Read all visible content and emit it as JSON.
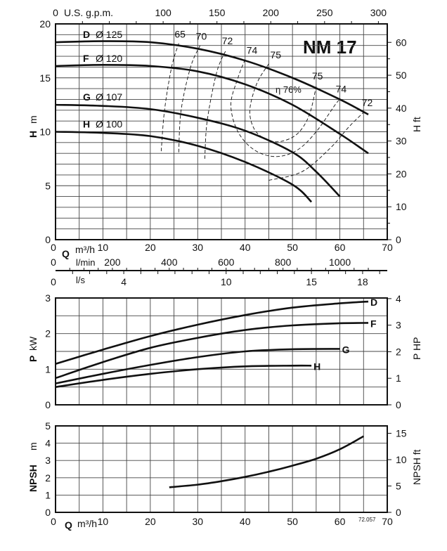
{
  "chart_data": [
    {
      "type": "line",
      "title": "NM 17",
      "xlabel": "Q m³/h",
      "ylabel": "H m",
      "y2label": "H ft",
      "x2label_top": "U.S. g.p.m.",
      "xlim": [
        0,
        70
      ],
      "ylim": [
        0,
        20
      ],
      "y2lim_ft": [
        0,
        65.6
      ],
      "grid": true,
      "x_ticks": [
        0,
        10,
        20,
        30,
        40,
        50,
        60,
        70
      ],
      "y_ticks": [
        0,
        5,
        10,
        15,
        20
      ],
      "y2_ticks": [
        0,
        10,
        20,
        30,
        40,
        50,
        60
      ],
      "top_ticks_gpm": [
        0,
        100,
        150,
        200,
        250,
        300
      ],
      "lmin_label": "l/min",
      "lmin_ticks": [
        0,
        200,
        400,
        600,
        800,
        1000
      ],
      "ls_label": "l/s",
      "ls_ticks": [
        0,
        4,
        10,
        15,
        18
      ],
      "series": [
        {
          "name": "D",
          "label": "Ø 125",
          "x": [
            0,
            10,
            20,
            30,
            40,
            50,
            60,
            66
          ],
          "y": [
            18.3,
            18.4,
            18.3,
            17.7,
            16.6,
            15.0,
            13.0,
            11.6
          ]
        },
        {
          "name": "F",
          "label": "Ø 120",
          "x": [
            0,
            10,
            20,
            30,
            40,
            50,
            60,
            66
          ],
          "y": [
            16.1,
            16.2,
            16.1,
            15.6,
            14.4,
            12.5,
            9.8,
            8.0
          ]
        },
        {
          "name": "G",
          "label": "Ø 107",
          "x": [
            0,
            10,
            20,
            30,
            40,
            50,
            55,
            60
          ],
          "y": [
            12.5,
            12.4,
            12.1,
            11.3,
            10.1,
            8.1,
            6.3,
            4.0
          ]
        },
        {
          "name": "H",
          "label": "Ø 100",
          "x": [
            0,
            10,
            20,
            30,
            40,
            50,
            54
          ],
          "y": [
            10.0,
            9.9,
            9.6,
            8.7,
            7.2,
            5.1,
            3.5
          ]
        }
      ],
      "efficiency_curves": [
        {
          "label": "65",
          "points": [
            [
              22.3,
              8.2
            ],
            [
              23,
              12
            ],
            [
              24.5,
              16
            ],
            [
              26,
              18.2
            ]
          ]
        },
        {
          "label": "70",
          "points": [
            [
              26,
              8.1
            ],
            [
              26.5,
              12
            ],
            [
              28.5,
              16
            ],
            [
              30.5,
              18
            ]
          ]
        },
        {
          "label": "72",
          "points": [
            [
              31.5,
              7.5
            ],
            [
              32,
              11
            ],
            [
              34,
              15.5
            ],
            [
              36,
              17.6
            ]
          ],
          "label_right": "72",
          "points_right": [
            [
              45,
              5.5
            ],
            [
              52,
              6.3
            ],
            [
              58,
              8.5
            ],
            [
              62,
              10.5
            ],
            [
              65.5,
              12
            ]
          ]
        },
        {
          "label": "74",
          "points": [
            [
              40,
              16.7
            ],
            [
              38.5,
              15
            ],
            [
              37,
              12.5
            ],
            [
              38.5,
              10
            ],
            [
              42,
              8.3
            ],
            [
              46.5,
              7.7
            ],
            [
              51,
              8.3
            ],
            [
              55,
              10
            ],
            [
              59,
              12.5
            ],
            [
              60,
              13
            ]
          ]
        },
        {
          "label": "75",
          "points": [
            [
              45,
              16.3
            ],
            [
              42.5,
              14.5
            ],
            [
              41,
              12
            ],
            [
              42,
              10.2
            ],
            [
              44.5,
              9.3
            ],
            [
              47.5,
              9.1
            ],
            [
              51,
              9.8
            ],
            [
              53.5,
              11.5
            ],
            [
              55,
              14.2
            ]
          ]
        }
      ],
      "best_efficiency_label": "η 76%"
    },
    {
      "type": "line",
      "xlabel": "",
      "ylabel": "P kW",
      "y2label": "P HP",
      "xlim": [
        0,
        70
      ],
      "ylim": [
        0,
        3
      ],
      "y_ticks": [
        0,
        1,
        2,
        3
      ],
      "y2_ticks": [
        0,
        1,
        2,
        3,
        4
      ],
      "grid": true,
      "series": [
        {
          "name": "D",
          "x": [
            0,
            10,
            20,
            30,
            40,
            50,
            60,
            66
          ],
          "y": [
            1.15,
            1.55,
            1.93,
            2.25,
            2.52,
            2.73,
            2.85,
            2.9
          ]
        },
        {
          "name": "F",
          "x": [
            0,
            10,
            20,
            30,
            40,
            50,
            60,
            66
          ],
          "y": [
            0.75,
            1.2,
            1.6,
            1.88,
            2.1,
            2.23,
            2.29,
            2.3
          ]
        },
        {
          "name": "G",
          "x": [
            0,
            10,
            20,
            30,
            40,
            50,
            60
          ],
          "y": [
            0.6,
            0.87,
            1.12,
            1.34,
            1.5,
            1.56,
            1.57
          ]
        },
        {
          "name": "H",
          "x": [
            0,
            10,
            20,
            30,
            40,
            50,
            54
          ],
          "y": [
            0.5,
            0.7,
            0.87,
            1.0,
            1.08,
            1.1,
            1.1
          ]
        }
      ]
    },
    {
      "type": "line",
      "xlabel": "Q m³/h",
      "ylabel": "NPSH m",
      "y2label": "NPSH ft",
      "xlim": [
        0,
        70
      ],
      "ylim": [
        0,
        5
      ],
      "x_ticks": [
        0,
        10,
        20,
        30,
        40,
        50,
        60,
        70
      ],
      "y_ticks": [
        0,
        1,
        2,
        3,
        4,
        5
      ],
      "y2_ticks": [
        0,
        5,
        10,
        15
      ],
      "grid": true,
      "series": [
        {
          "x": [
            24,
            30,
            35,
            40,
            45,
            50,
            55,
            60,
            65
          ],
          "y": [
            1.45,
            1.6,
            1.8,
            2.05,
            2.35,
            2.7,
            3.1,
            3.65,
            4.4
          ]
        }
      ],
      "annotation": "72.057"
    }
  ]
}
